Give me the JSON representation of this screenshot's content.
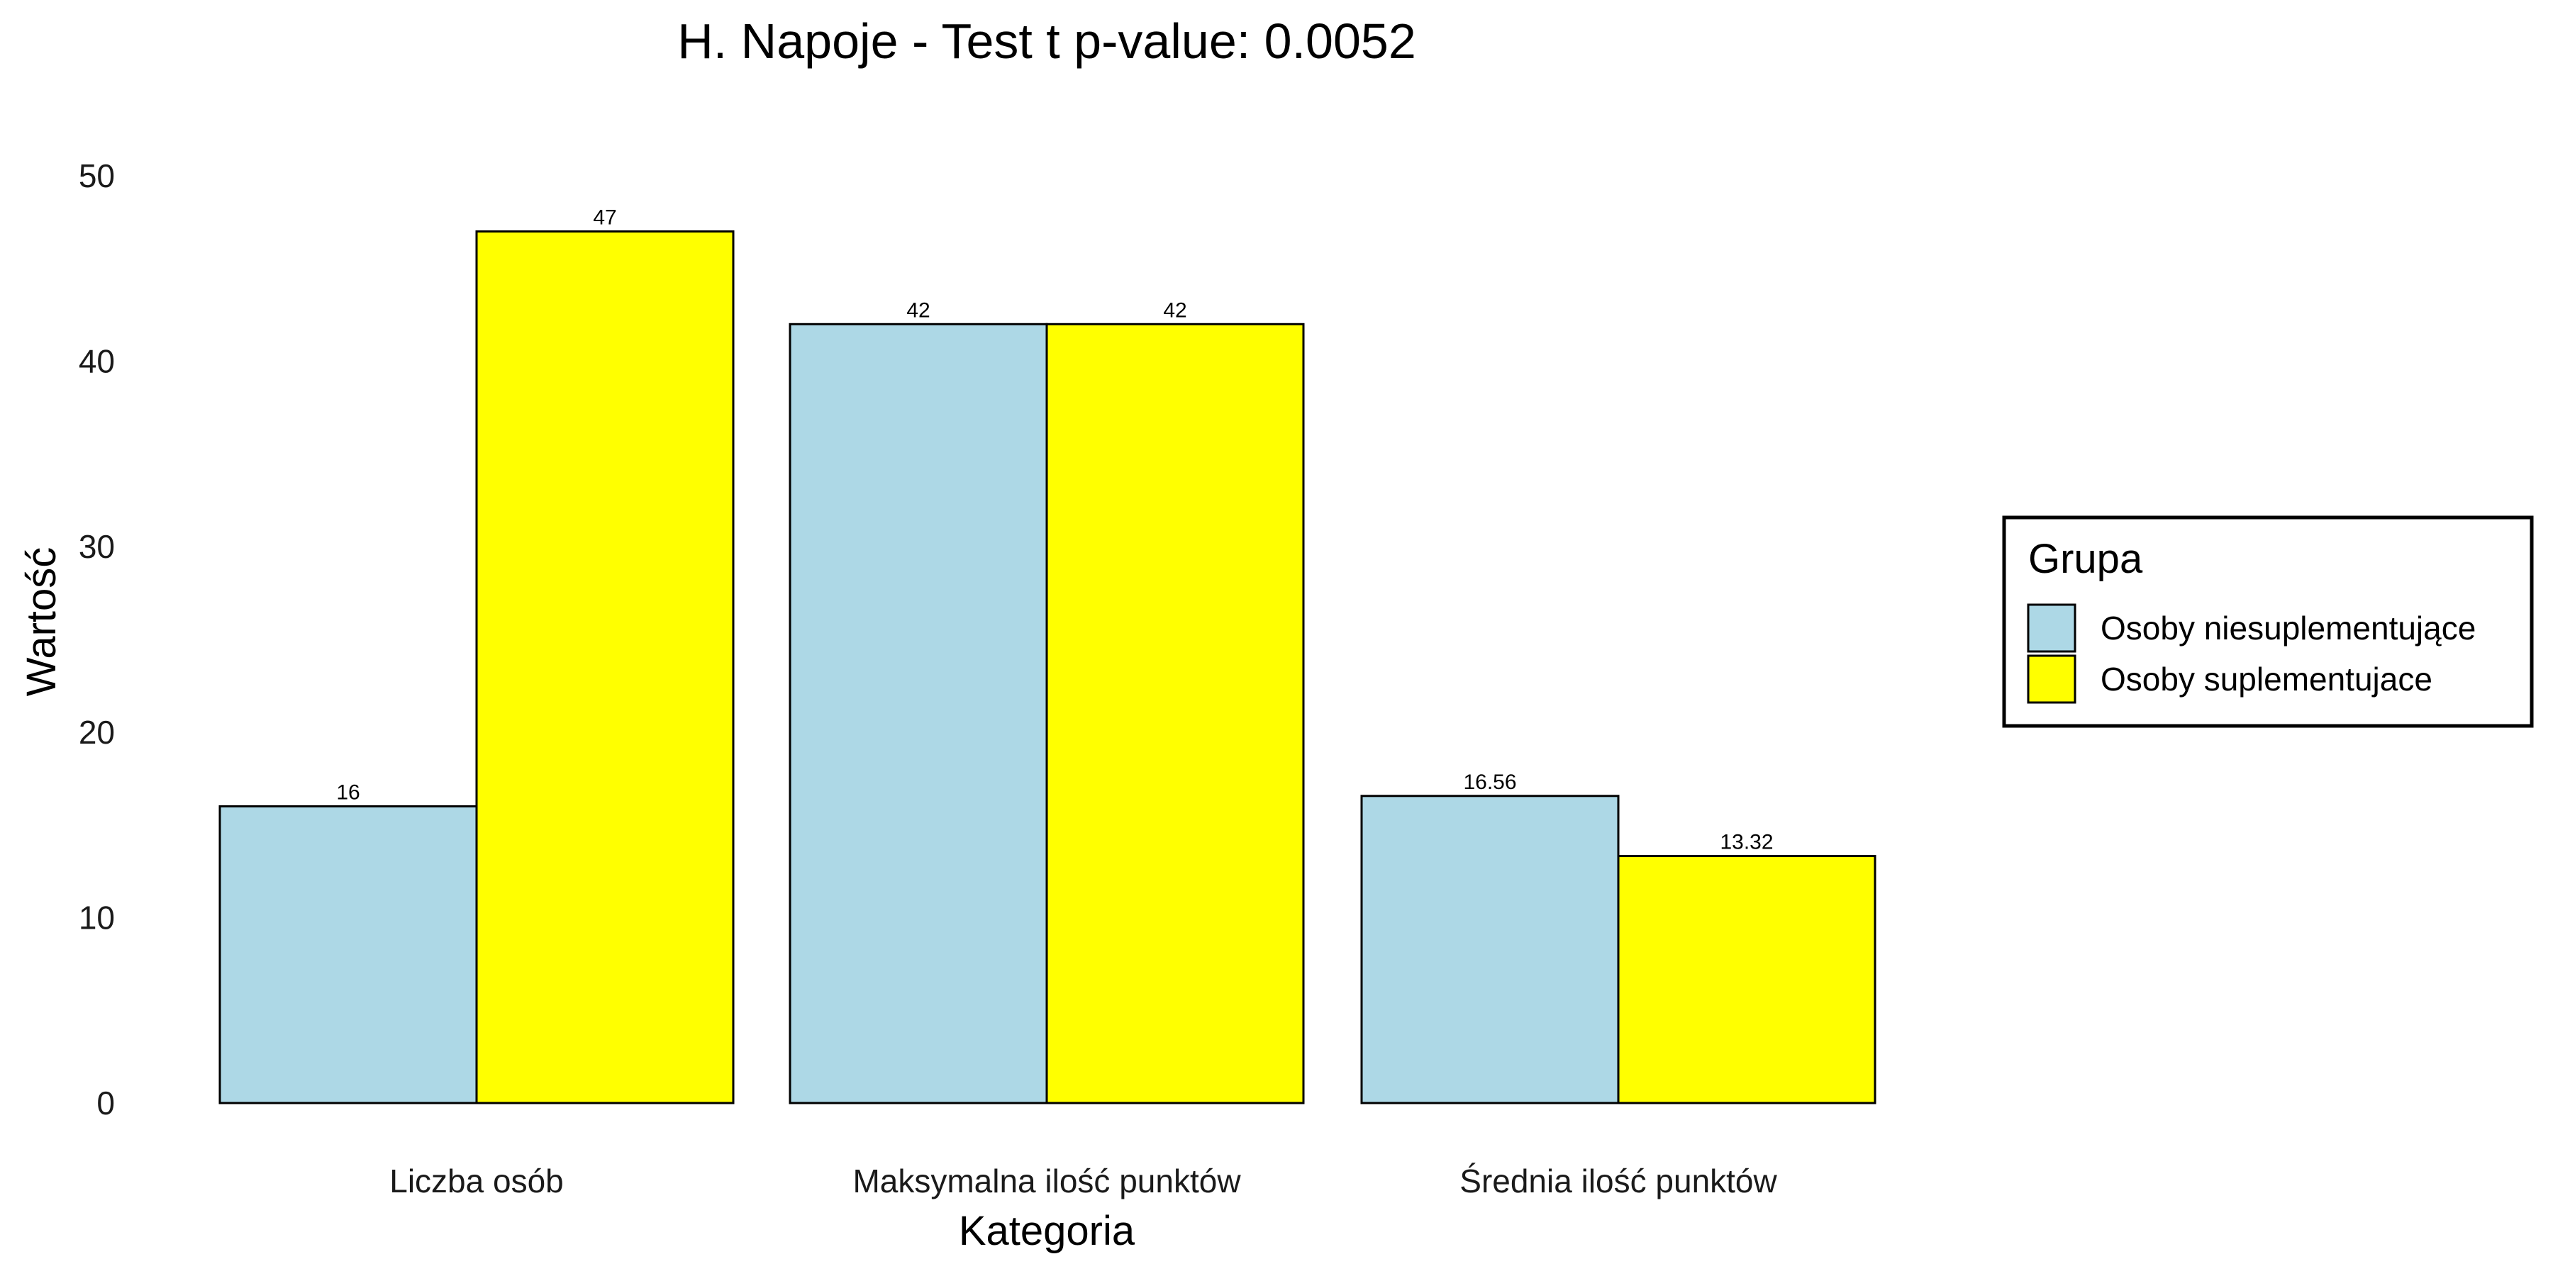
{
  "chart_data": {
    "type": "bar",
    "title": "H. Napoje - Test t p-value: 0.0052",
    "xlabel": "Kategoria",
    "ylabel": "Wartość",
    "categories": [
      "Liczba osób",
      "Maksymalna ilość punktów",
      "Średnia ilość punktów"
    ],
    "series": [
      {
        "name": "Osoby niesuplementujące",
        "color": "#ADD8E6",
        "values": [
          16,
          42,
          16.56
        ],
        "labels": [
          "16",
          "42",
          "16.56"
        ]
      },
      {
        "name": "Osoby suplementujace",
        "color": "#FFFF00",
        "values": [
          47,
          42,
          13.32
        ],
        "labels": [
          "47",
          "42",
          "13.32"
        ]
      }
    ],
    "ylim": [
      0,
      50
    ],
    "yticks": [
      0,
      10,
      20,
      30,
      40,
      50
    ],
    "ytick_labels": [
      "0",
      "10",
      "20",
      "30",
      "40",
      "50"
    ],
    "grid": false,
    "legend": {
      "title": "Grupa",
      "placement": "right"
    }
  }
}
